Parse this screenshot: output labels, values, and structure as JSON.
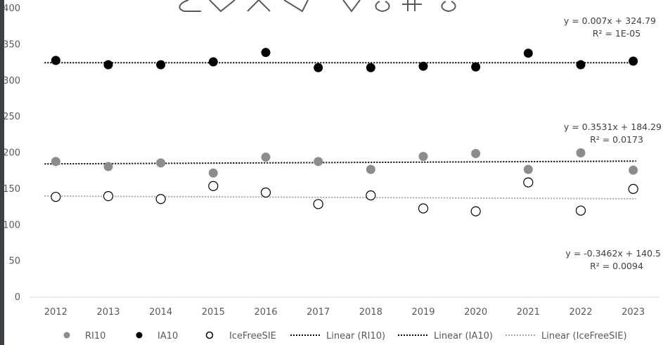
{
  "chart_data": {
    "type": "scatter",
    "title": "",
    "xlabel": "",
    "ylabel": "",
    "x": [
      "2012",
      "2013",
      "2014",
      "2015",
      "2016",
      "2017",
      "2018",
      "2019",
      "2020",
      "2021",
      "2022",
      "2023"
    ],
    "ylim": [
      0,
      400
    ],
    "y_ticks": [
      "0",
      "50",
      "100",
      "150",
      "200",
      "250",
      "300",
      "350",
      "400"
    ],
    "grid": false,
    "legend_position": "bottom",
    "series": [
      {
        "name": "RI10",
        "marker": "filled-circle",
        "color": "#8c8c8c",
        "values": [
          188,
          181,
          186,
          172,
          194,
          188,
          177,
          195,
          199,
          177,
          200,
          176
        ]
      },
      {
        "name": "IA10",
        "marker": "filled-circle",
        "color": "#000000",
        "values": [
          328,
          322,
          322,
          326,
          339,
          318,
          318,
          320,
          319,
          338,
          322,
          327
        ]
      },
      {
        "name": "IceFreeSIE",
        "marker": "open-circle",
        "color": "#000000",
        "values": [
          139,
          140,
          136,
          154,
          145,
          129,
          141,
          123,
          119,
          159,
          120,
          150
        ]
      }
    ],
    "trendlines": [
      {
        "name": "Linear (RI10)",
        "series": "RI10",
        "slope": 0.3531,
        "intercept": 184.29,
        "style": "dotted",
        "color": "#000000",
        "equation": "y = 0.3531x + 184.29",
        "r2": "R² = 0.0173"
      },
      {
        "name": "Linear (IA10)",
        "series": "IA10",
        "slope": 0.007,
        "intercept": 324.79,
        "style": "dotted",
        "color": "#000000",
        "equation": "y = 0.007x + 324.79",
        "r2": "R² = 1E-05"
      },
      {
        "name": "Linear (IceFreeSIE)",
        "series": "IceFreeSIE",
        "slope": -0.3462,
        "intercept": 140.5,
        "style": "dotted",
        "color": "#a6a6a6",
        "equation": "y = -0.3462x + 140.5",
        "r2": "R² = 0.0094"
      }
    ]
  }
}
